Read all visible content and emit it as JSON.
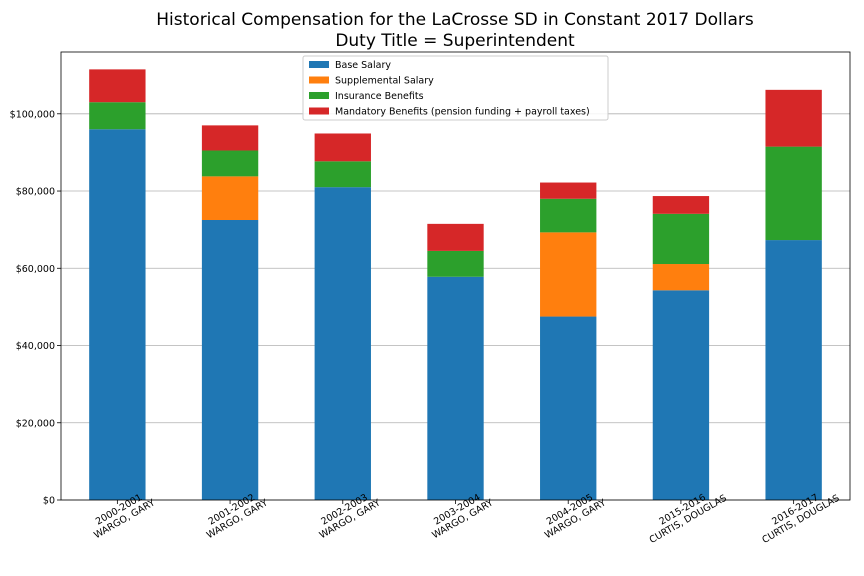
{
  "chart_data": {
    "type": "bar",
    "stacked": true,
    "title": "Historical Compensation for the LaCrosse SD in Constant 2017 Dollars",
    "subtitle": "Duty Title = Superintendent",
    "xlabel": "",
    "ylabel": "",
    "ylim": [
      0,
      116000
    ],
    "yticks": [
      0,
      20000,
      40000,
      60000,
      80000,
      100000
    ],
    "ytick_labels": [
      "$0",
      "$20,000",
      "$40,000",
      "$60,000",
      "$80,000",
      "$100,000"
    ],
    "grid": "horizontal",
    "legend_position": "top-center",
    "categories": [
      [
        "2000-2001",
        "WARGO, GARY"
      ],
      [
        "2001-2002",
        "WARGO, GARY"
      ],
      [
        "2002-2003",
        "WARGO, GARY"
      ],
      [
        "2003-2004",
        "WARGO, GARY"
      ],
      [
        "2004-2005",
        "WARGO, GARY"
      ],
      [
        "2015-2016",
        "CURTIS, DOUGLAS"
      ],
      [
        "2016-2017",
        "CURTIS, DOUGLAS"
      ]
    ],
    "series": [
      {
        "name": "Base Salary",
        "color": "#1f77b4",
        "values": [
          96000,
          72500,
          81000,
          57800,
          47500,
          54300,
          67300
        ]
      },
      {
        "name": "Supplemental Salary",
        "color": "#ff7f0e",
        "values": [
          0,
          11300,
          0,
          0,
          21800,
          6800,
          0
        ]
      },
      {
        "name": "Insurance Benefits",
        "color": "#2ca02c",
        "values": [
          7000,
          6700,
          6700,
          6700,
          8700,
          13000,
          24200
        ]
      },
      {
        "name": "Mandatory Benefits (pension funding + payroll taxes)",
        "color": "#d62728",
        "values": [
          8500,
          6500,
          7200,
          7000,
          4200,
          4600,
          14700
        ]
      }
    ]
  }
}
